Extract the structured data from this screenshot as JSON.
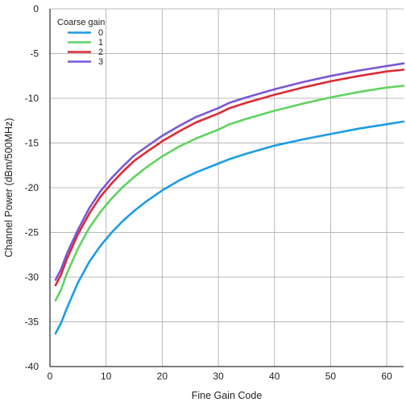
{
  "chart_data": {
    "type": "line",
    "title": "",
    "xlabel": "Fine Gain Code",
    "ylabel": "Channel Power (dBm/500MHz)",
    "xlim": [
      0,
      63
    ],
    "ylim": [
      -40,
      0
    ],
    "xticks": [
      0,
      10,
      20,
      30,
      40,
      50,
      60
    ],
    "yticks": [
      0,
      -5,
      -10,
      -15,
      -20,
      -25,
      -30,
      -35,
      -40
    ],
    "grid": true,
    "legend": {
      "title": "Coarse gain",
      "position": "top-left"
    },
    "series": [
      {
        "name": "0",
        "color": "#1e9be6",
        "x": [
          1,
          2,
          3,
          5,
          7,
          9,
          11,
          13,
          15,
          17,
          20,
          23,
          26,
          30,
          32,
          35,
          40,
          45,
          50,
          55,
          60,
          63
        ],
        "y": [
          -36.3,
          -35.1,
          -33.5,
          -30.6,
          -28.3,
          -26.5,
          -25.0,
          -23.7,
          -22.6,
          -21.6,
          -20.3,
          -19.2,
          -18.3,
          -17.3,
          -16.8,
          -16.2,
          -15.3,
          -14.6,
          -14.0,
          -13.4,
          -12.9,
          -12.6
        ]
      },
      {
        "name": "1",
        "color": "#5fd35f",
        "x": [
          1,
          2,
          3,
          5,
          7,
          9,
          11,
          13,
          15,
          17,
          20,
          23,
          26,
          30,
          32,
          35,
          40,
          45,
          50,
          55,
          60,
          63
        ],
        "y": [
          -32.6,
          -31.4,
          -29.6,
          -26.8,
          -24.5,
          -22.7,
          -21.2,
          -19.9,
          -18.8,
          -17.8,
          -16.5,
          -15.4,
          -14.5,
          -13.5,
          -12.9,
          -12.3,
          -11.4,
          -10.6,
          -9.9,
          -9.3,
          -8.8,
          -8.6
        ]
      },
      {
        "name": "2",
        "color": "#dc2b36",
        "x": [
          1,
          2,
          3,
          5,
          7,
          9,
          11,
          13,
          15,
          17,
          20,
          23,
          26,
          30,
          32,
          35,
          40,
          45,
          50,
          55,
          60,
          63
        ],
        "y": [
          -30.9,
          -29.7,
          -28.0,
          -25.2,
          -22.9,
          -21.0,
          -19.5,
          -18.2,
          -17.0,
          -16.1,
          -14.8,
          -13.7,
          -12.7,
          -11.7,
          -11.1,
          -10.5,
          -9.6,
          -8.8,
          -8.1,
          -7.5,
          -7.0,
          -6.8
        ]
      },
      {
        "name": "3",
        "color": "#7b57d4",
        "x": [
          1,
          2,
          3,
          5,
          7,
          9,
          11,
          13,
          15,
          17,
          20,
          23,
          26,
          30,
          32,
          35,
          40,
          45,
          50,
          55,
          60,
          63
        ],
        "y": [
          -30.3,
          -29.1,
          -27.4,
          -24.7,
          -22.3,
          -20.4,
          -18.9,
          -17.6,
          -16.4,
          -15.5,
          -14.2,
          -13.1,
          -12.1,
          -11.1,
          -10.5,
          -9.9,
          -9.0,
          -8.2,
          -7.5,
          -6.9,
          -6.4,
          -6.1
        ]
      }
    ]
  }
}
